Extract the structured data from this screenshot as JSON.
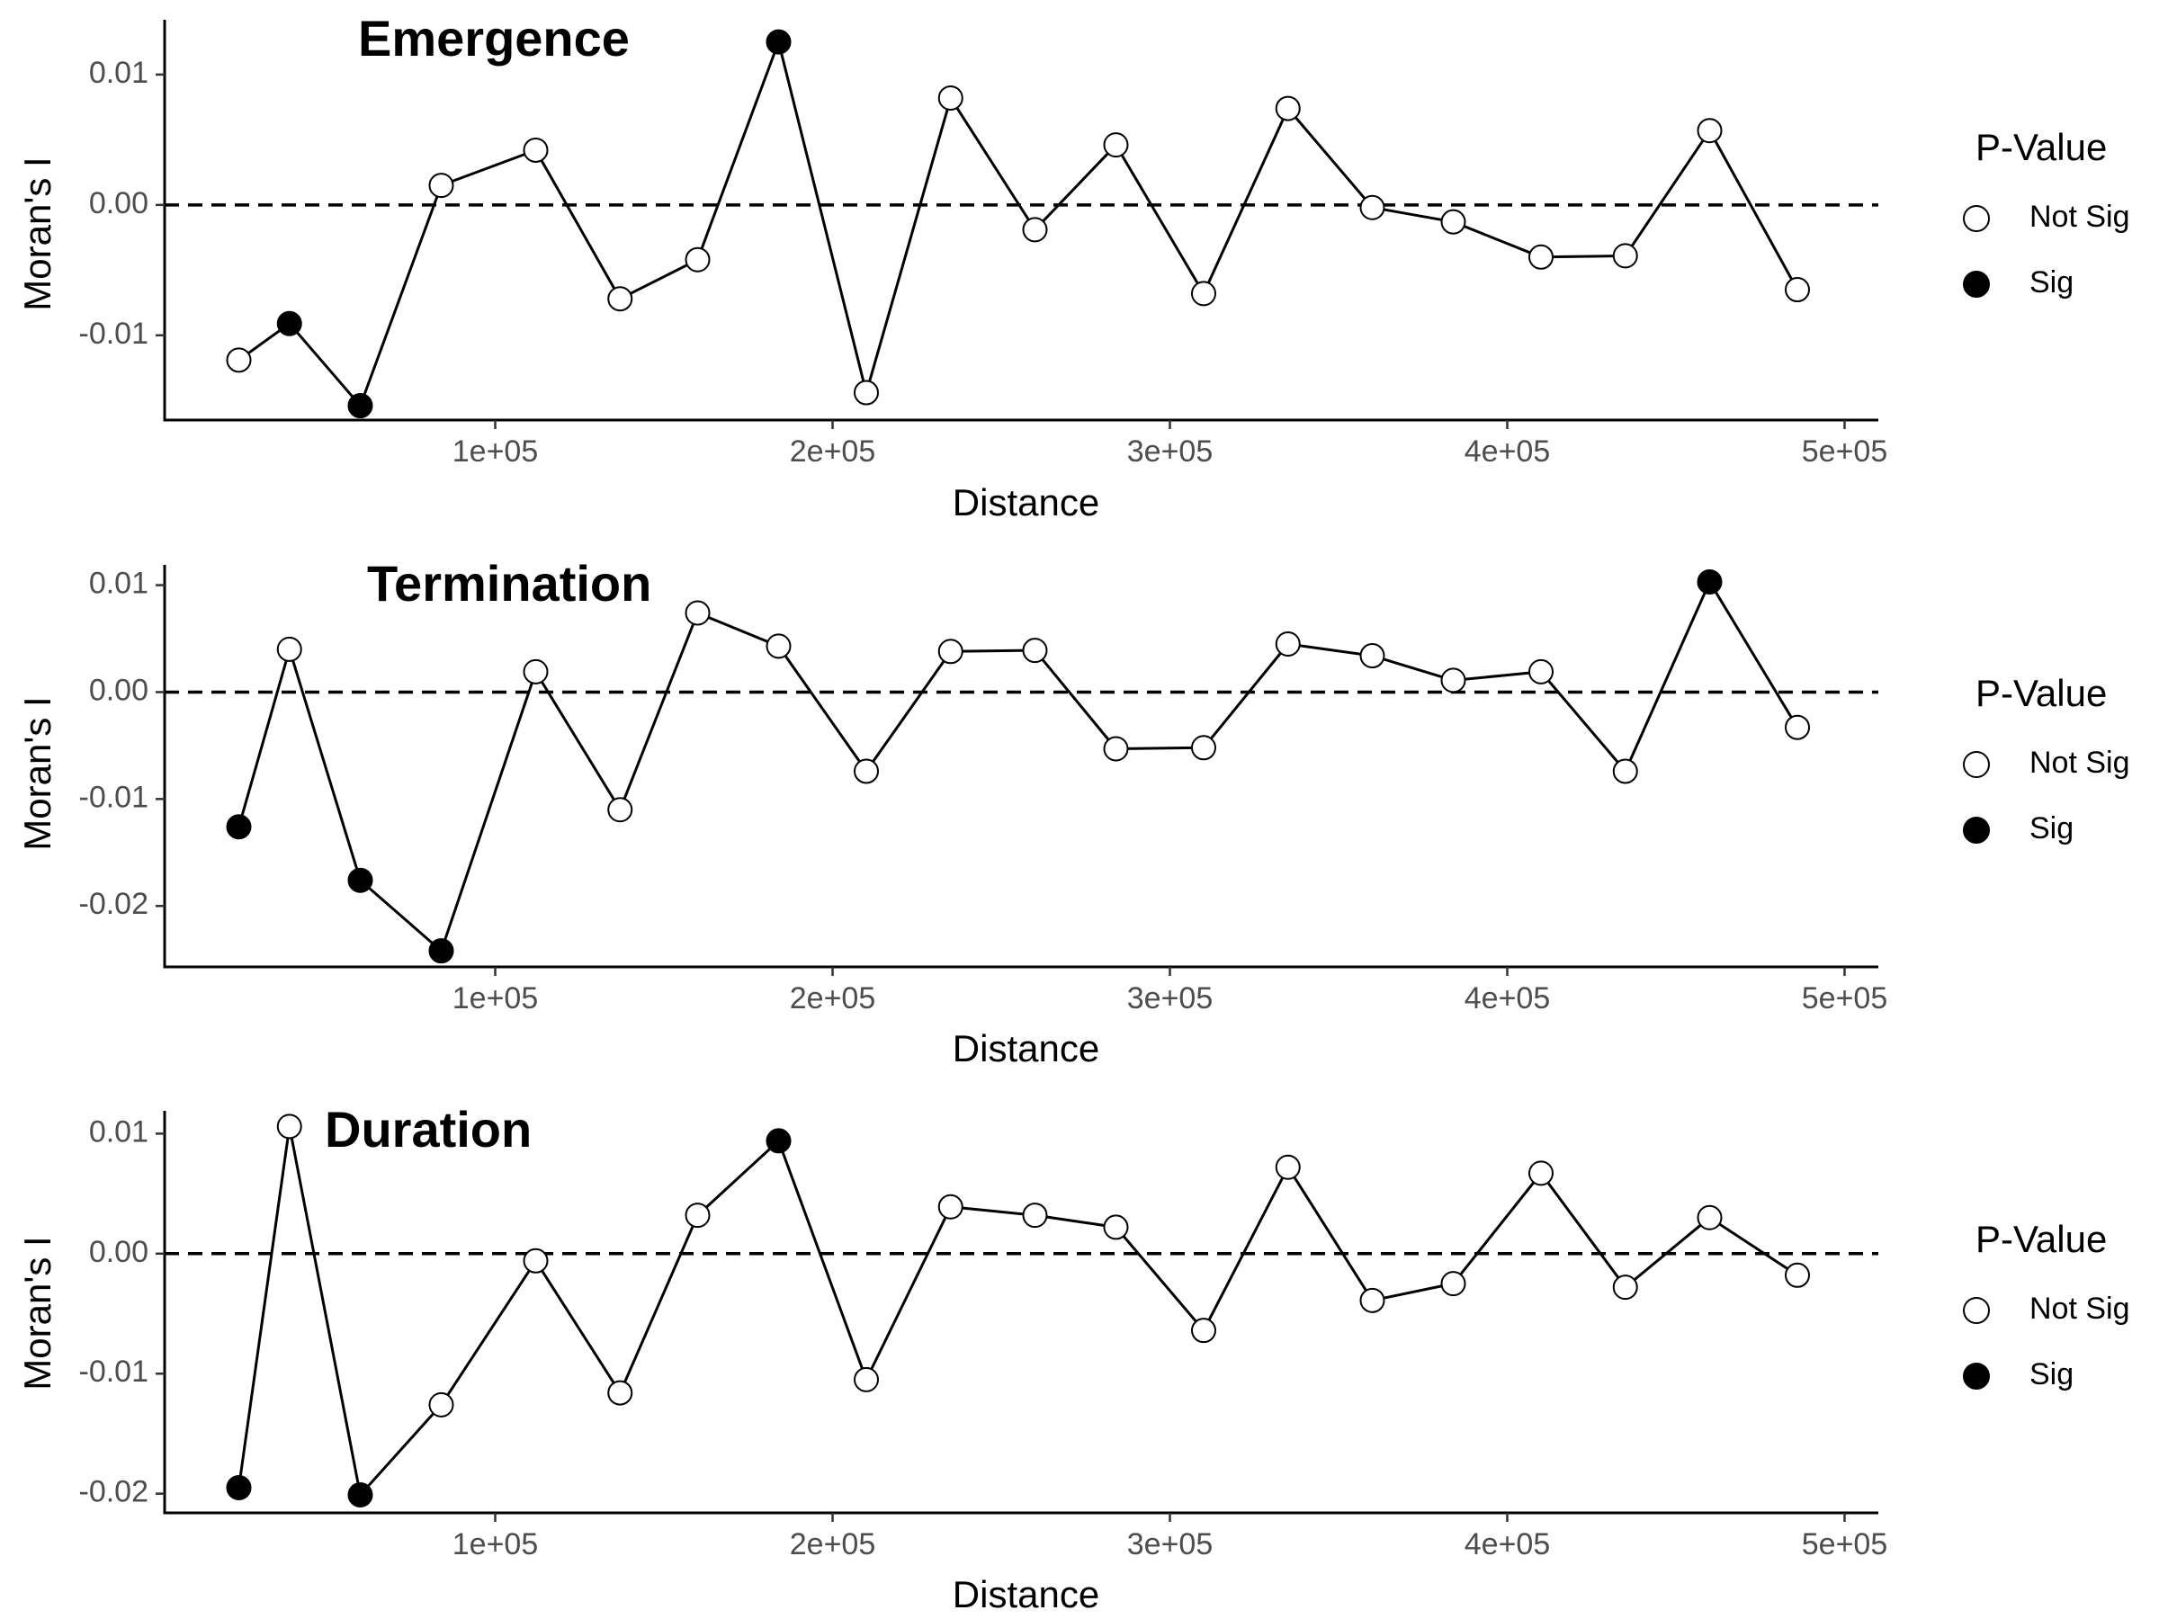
{
  "chart_data": [
    {
      "type": "line",
      "title": "Emergence",
      "xlabel": "Distance",
      "ylabel": "Moran's I",
      "xlim": [
        2000,
        510000
      ],
      "ylim": [
        -0.0165,
        0.0142
      ],
      "x_ticks": [
        100000,
        200000,
        300000,
        400000,
        500000
      ],
      "x_tick_labels": [
        "1e+05",
        "2e+05",
        "3e+05",
        "4e+05",
        "5e+05"
      ],
      "y_ticks": [
        0.01,
        0.0,
        -0.01
      ],
      "y_tick_labels": [
        "0.01",
        "0.00",
        "-0.01"
      ],
      "reference_line": 0,
      "legend": {
        "title": "P-Value",
        "position": "right",
        "entries": [
          "Not Sig",
          "Sig"
        ]
      },
      "x": [
        24000,
        39000,
        60000,
        84000,
        112000,
        137000,
        160000,
        184000,
        210000,
        235000,
        260000,
        284000,
        310000,
        335000,
        360000,
        384000,
        410000,
        435000,
        460000,
        486000
      ],
      "y": [
        -0.0119,
        -0.0091,
        -0.0154,
        0.0015,
        0.0042,
        -0.0072,
        -0.0042,
        0.0125,
        -0.0144,
        0.0082,
        -0.0019,
        0.0046,
        -0.0068,
        0.0074,
        -0.0002,
        -0.0013,
        -0.004,
        -0.0039,
        0.0057,
        -0.0065
      ],
      "p_value": [
        "Not Sig",
        "Sig",
        "Sig",
        "Not Sig",
        "Not Sig",
        "Not Sig",
        "Not Sig",
        "Sig",
        "Not Sig",
        "Not Sig",
        "Not Sig",
        "Not Sig",
        "Not Sig",
        "Not Sig",
        "Not Sig",
        "Not Sig",
        "Not Sig",
        "Not Sig",
        "Not Sig",
        "Not Sig"
      ]
    },
    {
      "type": "line",
      "title": "Termination",
      "xlabel": "Distance",
      "ylabel": "Moran's I",
      "xlim": [
        2000,
        510000
      ],
      "ylim": [
        -0.0257,
        0.0119
      ],
      "x_ticks": [
        100000,
        200000,
        300000,
        400000,
        500000
      ],
      "x_tick_labels": [
        "1e+05",
        "2e+05",
        "3e+05",
        "4e+05",
        "5e+05"
      ],
      "y_ticks": [
        0.01,
        0.0,
        -0.01,
        -0.02
      ],
      "y_tick_labels": [
        "0.01",
        "0.00",
        "-0.01",
        "-0.02"
      ],
      "reference_line": 0,
      "legend": {
        "title": "P-Value",
        "position": "right",
        "entries": [
          "Not Sig",
          "Sig"
        ]
      },
      "x": [
        24000,
        39000,
        60000,
        84000,
        112000,
        137000,
        160000,
        184000,
        210000,
        235000,
        260000,
        284000,
        310000,
        335000,
        360000,
        384000,
        410000,
        435000,
        460000,
        486000
      ],
      "y": [
        -0.0126,
        0.004,
        -0.0176,
        -0.0242,
        0.0019,
        -0.011,
        0.0074,
        0.0043,
        -0.0074,
        0.0038,
        0.0039,
        -0.0053,
        -0.0052,
        0.0045,
        0.0034,
        0.0011,
        0.0019,
        -0.0074,
        0.0103,
        -0.0033
      ],
      "p_value": [
        "Sig",
        "Not Sig",
        "Sig",
        "Sig",
        "Not Sig",
        "Not Sig",
        "Not Sig",
        "Not Sig",
        "Not Sig",
        "Not Sig",
        "Not Sig",
        "Not Sig",
        "Not Sig",
        "Not Sig",
        "Not Sig",
        "Not Sig",
        "Not Sig",
        "Not Sig",
        "Sig",
        "Not Sig"
      ]
    },
    {
      "type": "line",
      "title": "Duration",
      "xlabel": "Distance",
      "ylabel": "Moran's I",
      "xlim": [
        2000,
        510000
      ],
      "ylim": [
        -0.0216,
        0.0119
      ],
      "x_ticks": [
        100000,
        200000,
        300000,
        400000,
        500000
      ],
      "x_tick_labels": [
        "1e+05",
        "2e+05",
        "3e+05",
        "4e+05",
        "5e+05"
      ],
      "y_ticks": [
        0.01,
        0.0,
        -0.01,
        -0.02
      ],
      "y_tick_labels": [
        "0.01",
        "0.00",
        "-0.01",
        "-0.02"
      ],
      "reference_line": 0,
      "legend": {
        "title": "P-Value",
        "position": "right",
        "entries": [
          "Not Sig",
          "Sig"
        ]
      },
      "x": [
        24000,
        39000,
        60000,
        84000,
        112000,
        137000,
        160000,
        184000,
        210000,
        235000,
        260000,
        284000,
        310000,
        335000,
        360000,
        384000,
        410000,
        435000,
        460000,
        486000
      ],
      "y": [
        -0.0195,
        0.0106,
        -0.0201,
        -0.0126,
        -0.0006,
        -0.0116,
        0.0032,
        0.0094,
        -0.0105,
        0.0039,
        0.0032,
        0.0022,
        -0.0064,
        0.0072,
        -0.0039,
        -0.0025,
        0.0067,
        -0.0028,
        0.003,
        -0.0018
      ],
      "p_value": [
        "Sig",
        "Not Sig",
        "Sig",
        "Not Sig",
        "Not Sig",
        "Not Sig",
        "Not Sig",
        "Sig",
        "Not Sig",
        "Not Sig",
        "Not Sig",
        "Not Sig",
        "Not Sig",
        "Not Sig",
        "Not Sig",
        "Not Sig",
        "Not Sig",
        "Not Sig",
        "Not Sig",
        "Not Sig"
      ]
    }
  ],
  "colors": {
    "line": "#000000",
    "sig_fill": "#000000",
    "not_sig_fill": "#ffffff",
    "tick_text": "#4d4d4d"
  }
}
